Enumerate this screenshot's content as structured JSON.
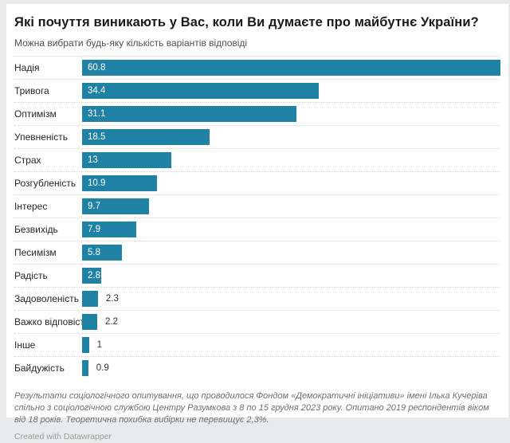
{
  "page": {
    "title": "Які почуття виникають у Вас, коли Ви думаєте про майбутнє України?",
    "subtitle": "Можна вибрати будь-яку кількість варіантів відповіді",
    "footer_note": "Результати соціологічного опитування, що проводилося Фондом «Демократичні ініціативи» імені Ілька Кучеріва спільно з соціологічною службою Центру Разумкова з 8 по 15 грудня 2023 року. Опитано 2019 респондентів віком від 18 років. Теоретична похибка вибірки не перевищує 2,3%.",
    "attribution": "Created with Datawrapper"
  },
  "colors": {
    "bar": "#1f81a3",
    "value_inside": "#ffffff",
    "value_outside": "#333333",
    "separator": "#d2d2d2",
    "page_background": "#e9eaeb",
    "card_background": "#ffffff"
  },
  "chart_data": {
    "type": "bar",
    "orientation": "horizontal",
    "title": "Які почуття виникають у Вас, коли Ви думаєте про майбутнє України?",
    "subtitle": "Можна вибрати будь-яку кількість варіантів відповіді",
    "categories": [
      "Надія",
      "Тривога",
      "Оптимізм",
      "Упевненість",
      "Страх",
      "Розгубленість",
      "Інтерес",
      "Безвихідь",
      "Песимізм",
      "Радість",
      "Задоволеність",
      "Важко відповісти",
      "Інше",
      "Байдужість"
    ],
    "values": [
      60.8,
      34.4,
      31.1,
      18.5,
      13,
      10.9,
      9.7,
      7.9,
      5.8,
      2.8,
      2.3,
      2.2,
      1,
      0.9
    ],
    "xlabel": "",
    "ylabel": "",
    "xlim": [
      0,
      60.8
    ],
    "grid": false,
    "value_labels": true,
    "legend": "none"
  }
}
